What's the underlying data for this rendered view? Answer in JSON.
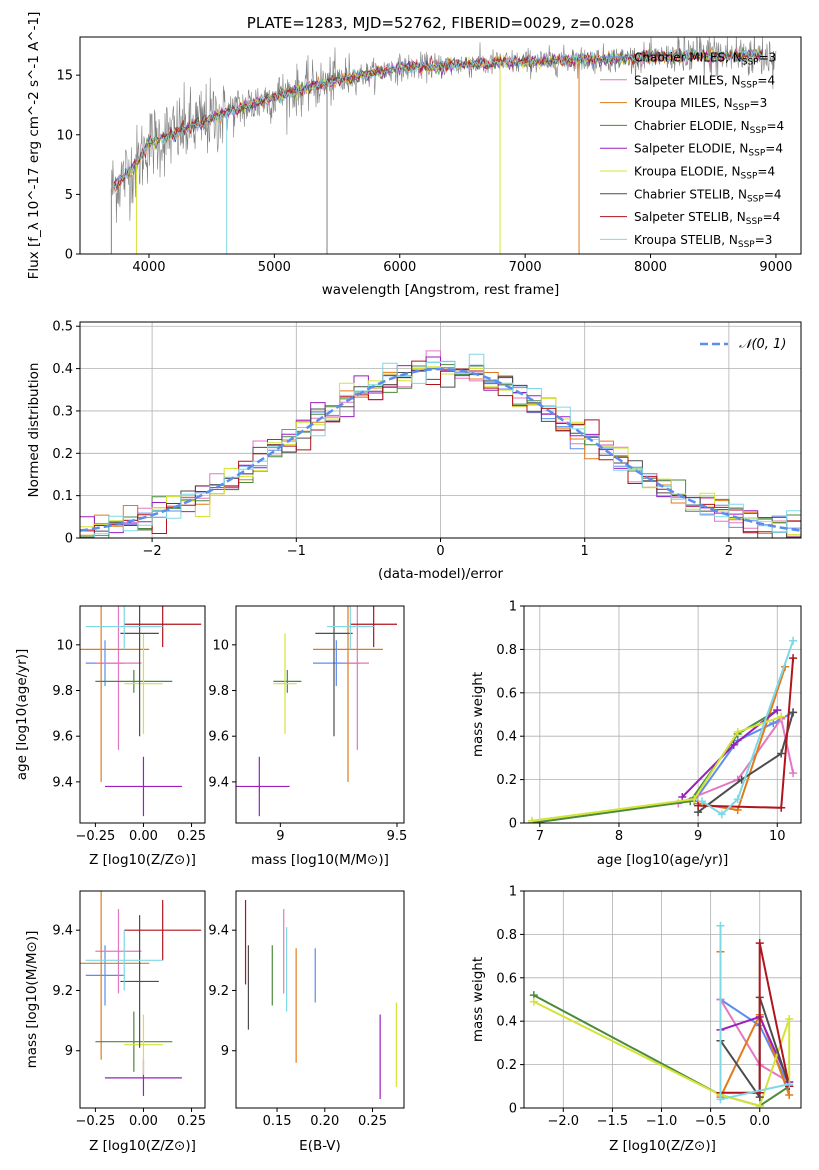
{
  "chart_data": [
    {
      "id": "spectrum",
      "type": "line",
      "title": "PLATE=1283, MJD=52762, FIBERID=0029, z=0.028",
      "xlabel": "wavelength [Angstrom, rest frame]",
      "ylabel": "Flux [f_λ 10^-17 erg cm^-2 s^-1 A^-1]",
      "xlim": [
        3450,
        9200
      ],
      "ylim": [
        0,
        18.2
      ],
      "xticks": [
        4000,
        5000,
        6000,
        7000,
        8000,
        9000
      ],
      "yticks": [
        0,
        5,
        10,
        15
      ],
      "grid": false,
      "legend_position": "right",
      "legend": [
        {
          "label": "Chabrier MILES, N",
          "sub": "SSP",
          "suffix": "=3",
          "color": "#5b8def"
        },
        {
          "label": "Salpeter MILES, N",
          "sub": "SSP",
          "suffix": "=4",
          "color": "#e377c2"
        },
        {
          "label": "Kroupa MILES, N",
          "sub": "SSP",
          "suffix": "=3",
          "color": "#e07b1a"
        },
        {
          "label": "Chabrier ELODIE, N",
          "sub": "SSP",
          "suffix": "=4",
          "color": "#4a8a3a"
        },
        {
          "label": "Salpeter ELODIE, N",
          "sub": "SSP",
          "suffix": "=4",
          "color": "#9a1fbf"
        },
        {
          "label": "Kroupa ELODIE, N",
          "sub": "SSP",
          "suffix": "=4",
          "color": "#d4e33a"
        },
        {
          "label": "Chabrier STELIB, N",
          "sub": "SSP",
          "suffix": "=4",
          "color": "#4d4d4d"
        },
        {
          "label": "Salpeter STELIB, N",
          "sub": "SSP",
          "suffix": "=4",
          "color": "#b0141c"
        },
        {
          "label": "Kroupa STELIB, N",
          "sub": "SSP",
          "suffix": "=3",
          "color": "#7fd8e6"
        }
      ],
      "data_color": "#808080",
      "continuum": {
        "x": [
          3700,
          3900,
          4000,
          4300,
          4600,
          5000,
          5500,
          6000,
          6500,
          7000,
          7500,
          8000,
          8500,
          9000
        ],
        "y": [
          5.5,
          7.5,
          9.3,
          10.5,
          11.8,
          13.2,
          14.6,
          15.6,
          15.9,
          16.1,
          16.3,
          16.5,
          16.6,
          16.7
        ]
      },
      "drops": [
        {
          "x": 3700,
          "color": "#808080"
        },
        {
          "x": 3900,
          "color": "#d4e33a"
        },
        {
          "x": 4620,
          "color": "#7fd8e6"
        },
        {
          "x": 5420,
          "color": "#808080"
        },
        {
          "x": 6800,
          "color": "#d4e33a"
        },
        {
          "x": 7430,
          "color": "#e07b1a"
        }
      ]
    },
    {
      "id": "residuals",
      "type": "histogram",
      "xlabel": "(data-model)/error",
      "ylabel": "Normed distribution",
      "xlim": [
        -2.5,
        2.5
      ],
      "ylim": [
        0,
        0.51
      ],
      "xticks": [
        -2,
        -1,
        0,
        1,
        2
      ],
      "xtick_labels": [
        "−2",
        "−1",
        "0",
        "1",
        "2"
      ],
      "yticks": [
        0.0,
        0.1,
        0.2,
        0.3,
        0.4,
        0.5
      ],
      "grid": true,
      "legend_position": "top-right",
      "reference": {
        "label": "𝒩(0, 1)",
        "color": "#5b8def",
        "mean": 0,
        "sigma": 1
      },
      "bin_width": 0.1
    },
    {
      "id": "age_vs_Z",
      "type": "scatter",
      "xlabel": "Z [log10(Z/Z⊙)]",
      "ylabel": "age  [log10(age/yr)]",
      "xlim": [
        -0.33,
        0.32
      ],
      "ylim": [
        9.22,
        10.17
      ],
      "xticks": [
        -0.25,
        0.0,
        0.25
      ],
      "xtick_labels": [
        "−0.25",
        "0.00",
        "0.25"
      ],
      "yticks": [
        9.4,
        9.6,
        9.8,
        10.0
      ],
      "points": [
        {
          "x": -0.2,
          "y": 9.92,
          "xerr": 0.1,
          "yerr": 0.1,
          "color": "#5b8def"
        },
        {
          "x": -0.13,
          "y": 9.92,
          "xerr": 0.12,
          "yerr": 0.38,
          "color": "#e377c2"
        },
        {
          "x": -0.22,
          "y": 9.98,
          "xerr": 0.25,
          "yerr": 0.58,
          "color": "#e07b1a"
        },
        {
          "x": -0.05,
          "y": 9.84,
          "xerr": 0.2,
          "yerr": 0.05,
          "color": "#4a8a3a"
        },
        {
          "x": 0.0,
          "y": 9.38,
          "xerr": 0.2,
          "yerr": 0.13,
          "color": "#9a1fbf"
        },
        {
          "x": 0.0,
          "y": 9.83,
          "xerr": 0.1,
          "yerr": 0.22,
          "color": "#d4e33a"
        },
        {
          "x": -0.02,
          "y": 10.05,
          "xerr": 0.1,
          "yerr": 0.45,
          "color": "#4d4d4d"
        },
        {
          "x": 0.1,
          "y": 10.09,
          "xerr": 0.2,
          "yerr": 0.1,
          "color": "#b0141c"
        },
        {
          "x": -0.1,
          "y": 10.08,
          "xerr": 0.2,
          "yerr": 0.1,
          "color": "#7fd8e6"
        }
      ]
    },
    {
      "id": "age_vs_mass",
      "type": "scatter",
      "xlabel": "mass [log10(M/M⊙)]",
      "ylabel": "",
      "xlim": [
        8.81,
        9.53
      ],
      "ylim": [
        9.22,
        10.17
      ],
      "xticks": [
        9.0,
        9.5
      ],
      "yticks": [
        9.4,
        9.6,
        9.8,
        10.0
      ],
      "points": [
        {
          "x": 9.24,
          "y": 9.92,
          "xerr": 0.1,
          "yerr": 0.1,
          "color": "#5b8def"
        },
        {
          "x": 9.33,
          "y": 9.92,
          "xerr": 0.05,
          "yerr": 0.38,
          "color": "#e377c2"
        },
        {
          "x": 9.29,
          "y": 9.98,
          "xerr": 0.15,
          "yerr": 0.58,
          "color": "#e07b1a"
        },
        {
          "x": 9.03,
          "y": 9.84,
          "xerr": 0.06,
          "yerr": 0.05,
          "color": "#4a8a3a"
        },
        {
          "x": 8.91,
          "y": 9.38,
          "xerr": 0.13,
          "yerr": 0.13,
          "color": "#9a1fbf"
        },
        {
          "x": 9.02,
          "y": 9.83,
          "xerr": 0.05,
          "yerr": 0.22,
          "color": "#d4e33a"
        },
        {
          "x": 9.23,
          "y": 10.05,
          "xerr": 0.08,
          "yerr": 0.45,
          "color": "#4d4d4d"
        },
        {
          "x": 9.4,
          "y": 10.09,
          "xerr": 0.1,
          "yerr": 0.1,
          "color": "#b0141c"
        },
        {
          "x": 9.3,
          "y": 10.08,
          "xerr": 0.1,
          "yerr": 0.1,
          "color": "#7fd8e6"
        }
      ]
    },
    {
      "id": "weight_vs_age",
      "type": "line",
      "xlabel": "age  [log10(age/yr)]",
      "ylabel": "mass weight",
      "xlim": [
        6.8,
        10.3
      ],
      "ylim": [
        0,
        1
      ],
      "xticks": [
        7,
        8,
        9,
        10
      ],
      "yticks": [
        0.0,
        0.2,
        0.4,
        0.6,
        0.8,
        1.0
      ],
      "grid": true,
      "series": [
        {
          "color": "#5b8def",
          "x": [
            8.95,
            9.5,
            9.95,
            10.2
          ],
          "y": [
            0.1,
            0.38,
            0.46,
            0.51
          ]
        },
        {
          "color": "#e377c2",
          "x": [
            8.75,
            9.5,
            10.05,
            10.2
          ],
          "y": [
            0.09,
            0.2,
            0.48,
            0.23
          ]
        },
        {
          "color": "#e07b1a",
          "x": [
            9.0,
            9.5,
            10.1
          ],
          "y": [
            0.09,
            0.06,
            0.72
          ]
        },
        {
          "color": "#4a8a3a",
          "x": [
            6.9,
            8.9,
            9.5,
            10.0
          ],
          "y": [
            0.0,
            0.1,
            0.41,
            0.52
          ]
        },
        {
          "color": "#9a1fbf",
          "x": [
            8.8,
            9.45,
            10.0
          ],
          "y": [
            0.12,
            0.36,
            0.52
          ]
        },
        {
          "color": "#d4e33a",
          "x": [
            6.9,
            8.95,
            9.5,
            10.05
          ],
          "y": [
            0.01,
            0.11,
            0.42,
            0.49
          ]
        },
        {
          "color": "#4d4d4d",
          "x": [
            9.0,
            9.55,
            10.05,
            10.2
          ],
          "y": [
            0.05,
            0.2,
            0.32,
            0.51
          ]
        },
        {
          "color": "#b0141c",
          "x": [
            9.0,
            10.05,
            10.2
          ],
          "y": [
            0.08,
            0.07,
            0.76
          ]
        },
        {
          "color": "#7fd8e6",
          "x": [
            9.05,
            9.3,
            9.5,
            10.2
          ],
          "y": [
            0.1,
            0.04,
            0.11,
            0.84
          ]
        }
      ]
    },
    {
      "id": "mass_vs_Z",
      "type": "scatter",
      "xlabel": "Z [log10(Z/Z⊙)]",
      "ylabel": "mass [log10(M/M⊙)]",
      "xlim": [
        -0.33,
        0.32
      ],
      "ylim": [
        8.81,
        9.53
      ],
      "xticks": [
        -0.25,
        0.0,
        0.25
      ],
      "xtick_labels": [
        "−0.25",
        "0.00",
        "0.25"
      ],
      "yticks": [
        9.0,
        9.2,
        9.4
      ],
      "points": [
        {
          "x": -0.2,
          "y": 9.25,
          "xerr": 0.1,
          "yerr": 0.1,
          "color": "#5b8def"
        },
        {
          "x": -0.13,
          "y": 9.33,
          "xerr": 0.12,
          "yerr": 0.14,
          "color": "#e377c2"
        },
        {
          "x": -0.22,
          "y": 9.29,
          "xerr": 0.25,
          "yerr": 0.32,
          "color": "#e07b1a"
        },
        {
          "x": -0.05,
          "y": 9.03,
          "xerr": 0.2,
          "yerr": 0.1,
          "color": "#4a8a3a"
        },
        {
          "x": 0.0,
          "y": 8.91,
          "xerr": 0.2,
          "yerr": 0.06,
          "color": "#9a1fbf"
        },
        {
          "x": 0.0,
          "y": 9.02,
          "xerr": 0.1,
          "yerr": 0.1,
          "color": "#d4e33a"
        },
        {
          "x": -0.02,
          "y": 9.23,
          "xerr": 0.1,
          "yerr": 0.22,
          "color": "#4d4d4d"
        },
        {
          "x": 0.1,
          "y": 9.4,
          "xerr": 0.2,
          "yerr": 0.1,
          "color": "#b0141c"
        },
        {
          "x": -0.1,
          "y": 9.3,
          "xerr": 0.2,
          "yerr": 0.1,
          "color": "#7fd8e6"
        }
      ]
    },
    {
      "id": "mass_vs_EBV",
      "type": "scatter",
      "xlabel": "E(B-V)",
      "ylabel": "",
      "xlim": [
        0.107,
        0.283
      ],
      "ylim": [
        8.81,
        9.53
      ],
      "xticks": [
        0.15,
        0.2,
        0.25
      ],
      "xtick_labels": [
        "0.15",
        "0.20",
        "0.25"
      ],
      "yticks": [
        9.0,
        9.2,
        9.4
      ],
      "points": [
        {
          "x": 0.19,
          "y": 9.25,
          "xerr": 0,
          "yerr": 0.09,
          "color": "#5b8def"
        },
        {
          "x": 0.157,
          "y": 9.33,
          "xerr": 0,
          "yerr": 0.14,
          "color": "#e377c2"
        },
        {
          "x": 0.17,
          "y": 9.15,
          "xerr": 0,
          "yerr": 0.19,
          "color": "#e07b1a"
        },
        {
          "x": 0.145,
          "y": 9.25,
          "xerr": 0,
          "yerr": 0.1,
          "color": "#4a8a3a"
        },
        {
          "x": 0.258,
          "y": 8.98,
          "xerr": 0,
          "yerr": 0.14,
          "color": "#9a1fbf"
        },
        {
          "x": 0.275,
          "y": 9.02,
          "xerr": 0,
          "yerr": 0.14,
          "color": "#d4e33a"
        },
        {
          "x": 0.12,
          "y": 9.21,
          "xerr": 0,
          "yerr": 0.14,
          "color": "#4d4d4d"
        },
        {
          "x": 0.117,
          "y": 9.36,
          "xerr": 0,
          "yerr": 0.14,
          "color": "#b0141c"
        },
        {
          "x": 0.16,
          "y": 9.27,
          "xerr": 0,
          "yerr": 0.14,
          "color": "#7fd8e6"
        }
      ]
    },
    {
      "id": "weight_vs_Z",
      "type": "line",
      "xlabel": "Z [log10(Z/Z⊙)]",
      "ylabel": "mass weight",
      "xlim": [
        -2.4,
        0.42
      ],
      "ylim": [
        0,
        1
      ],
      "xticks": [
        -2.0,
        -1.5,
        -1.0,
        -0.5,
        0.0
      ],
      "xtick_labels": [
        "−2.0",
        "−1.5",
        "−1.0",
        "−0.5",
        "0.0"
      ],
      "yticks": [
        0.0,
        0.2,
        0.4,
        0.6,
        0.8,
        1.0
      ],
      "grid": true,
      "series": [
        {
          "color": "#5b8def",
          "x": [
            -0.4,
            0.0,
            0.3
          ],
          "y": [
            0.5,
            0.38,
            0.1
          ]
        },
        {
          "color": "#e377c2",
          "x": [
            -0.4,
            0.0,
            0.3
          ],
          "y": [
            0.5,
            0.2,
            0.12
          ]
        },
        {
          "color": "#e07b1a",
          "x": [
            -0.4,
            -0.4,
            0.0,
            0.3
          ],
          "y": [
            0.72,
            0.05,
            0.43,
            0.06
          ]
        },
        {
          "color": "#4a8a3a",
          "x": [
            -2.3,
            -0.4,
            0.0,
            0.3
          ],
          "y": [
            0.52,
            0.06,
            0.01,
            0.1
          ]
        },
        {
          "color": "#9a1fbf",
          "x": [
            -0.4,
            0.0,
            0.3
          ],
          "y": [
            0.36,
            0.42,
            0.12
          ]
        },
        {
          "color": "#d4e33a",
          "x": [
            -2.3,
            -0.4,
            0.0,
            0.3,
            0.3
          ],
          "y": [
            0.49,
            0.06,
            0.01,
            0.41,
            0.1
          ]
        },
        {
          "color": "#4d4d4d",
          "x": [
            -0.4,
            0.0,
            0.0,
            0.3
          ],
          "y": [
            0.31,
            0.05,
            0.51,
            0.1
          ]
        },
        {
          "color": "#b0141c",
          "x": [
            -0.4,
            0.0,
            0.0,
            0.3
          ],
          "y": [
            0.07,
            0.07,
            0.76,
            0.1
          ]
        },
        {
          "color": "#7fd8e6",
          "x": [
            -0.4,
            -0.4,
            0.3
          ],
          "y": [
            0.84,
            0.04,
            0.11
          ]
        }
      ]
    }
  ]
}
